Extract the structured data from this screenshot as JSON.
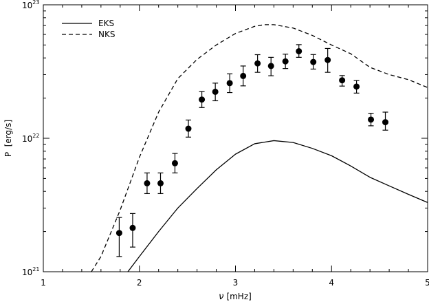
{
  "chart_data": {
    "type": "line",
    "xlabel_symbol": "ν",
    "xlabel_unit": "[mHz]",
    "ylabel": "P  [erg/s]",
    "xlim": [
      1,
      5
    ],
    "ylim": [
      1e+21,
      1e+23
    ],
    "yscale": "log",
    "grid": false,
    "legend_position": "top-left",
    "x_ticks": [
      {
        "value": 1,
        "label": "1"
      },
      {
        "value": 2,
        "label": "2"
      },
      {
        "value": 3,
        "label": "3"
      },
      {
        "value": 4,
        "label": "4"
      },
      {
        "value": 5,
        "label": "5"
      }
    ],
    "y_ticks": [
      {
        "value": 1e+21,
        "base": "10",
        "exp": "21"
      },
      {
        "value": 1e+22,
        "base": "10",
        "exp": "22"
      },
      {
        "value": 1e+23,
        "base": "10",
        "exp": "23"
      }
    ],
    "series": [
      {
        "name": "EKS",
        "style": "solid",
        "x": [
          1.88,
          2.0,
          2.2,
          2.4,
          2.6,
          2.8,
          3.0,
          3.2,
          3.4,
          3.6,
          3.8,
          4.0,
          4.2,
          4.4,
          4.6,
          4.8,
          5.0
        ],
        "y": [
          1e+21,
          1.3e+21,
          2e+21,
          3e+21,
          4.2e+21,
          5.8e+21,
          7.6e+21,
          9.1e+21,
          9.6e+21,
          9.3e+21,
          8.4e+21,
          7.4e+21,
          6.2e+21,
          5.1e+21,
          4.4e+21,
          3.8e+21,
          3.3e+21
        ]
      },
      {
        "name": "NKS",
        "style": "dashed",
        "x": [
          1.5,
          1.6,
          1.8,
          2.0,
          2.2,
          2.4,
          2.6,
          2.8,
          3.0,
          3.2,
          3.3,
          3.4,
          3.6,
          3.8,
          4.0,
          4.2,
          4.4,
          4.6,
          4.8,
          5.0
        ],
        "y": [
          1e+21,
          1.3e+21,
          2.9e+21,
          7.2e+21,
          1.57e+22,
          2.8e+22,
          3.9e+22,
          5e+22,
          6.1e+22,
          6.9e+22,
          7.1e+22,
          7.1e+22,
          6.7e+22,
          5.9e+22,
          5e+22,
          4.3e+22,
          3.4e+22,
          3e+22,
          2.75e+22,
          2.4e+22
        ]
      }
    ],
    "points": {
      "x": [
        1.79,
        1.93,
        2.08,
        2.22,
        2.37,
        2.51,
        2.65,
        2.79,
        2.94,
        3.08,
        3.23,
        3.37,
        3.52,
        3.66,
        3.81,
        3.96,
        4.11,
        4.26,
        4.41,
        4.56
      ],
      "y": [
        1.95e+21,
        2.13e+21,
        4.6e+21,
        4.6e+21,
        6.5e+21,
        1.18e+22,
        1.95e+22,
        2.23e+22,
        2.59e+22,
        2.93e+22,
        3.64e+22,
        3.48e+22,
        3.77e+22,
        4.49e+22,
        3.73e+22,
        3.86e+22,
        2.72e+22,
        2.44e+22,
        1.38e+22,
        1.32e+22
      ],
      "err_low": [
        6.5e+20,
        6e+20,
        7.5e+20,
        7.5e+20,
        1e+21,
        1.6e+21,
        2.5e+21,
        3.2e+21,
        3.9e+21,
        4.6e+21,
        5.2e+21,
        5.4e+21,
        4.4e+21,
        4.5e+21,
        4.3e+21,
        7.4e+21,
        2.6e+21,
        2.6e+21,
        1.4e+21,
        1.7e+21
      ],
      "err_high": [
        6e+20,
        6e+20,
        9e+20,
        9e+20,
        1.2e+21,
        1.9e+21,
        2.9e+21,
        3.6e+21,
        4.5e+21,
        5.5e+21,
        5.9e+21,
        5.6e+21,
        5e+21,
        5.4e+21,
        5.1e+21,
        8.5e+21,
        2.3e+21,
        2.7e+21,
        1.6e+21,
        2.5e+21
      ]
    }
  }
}
